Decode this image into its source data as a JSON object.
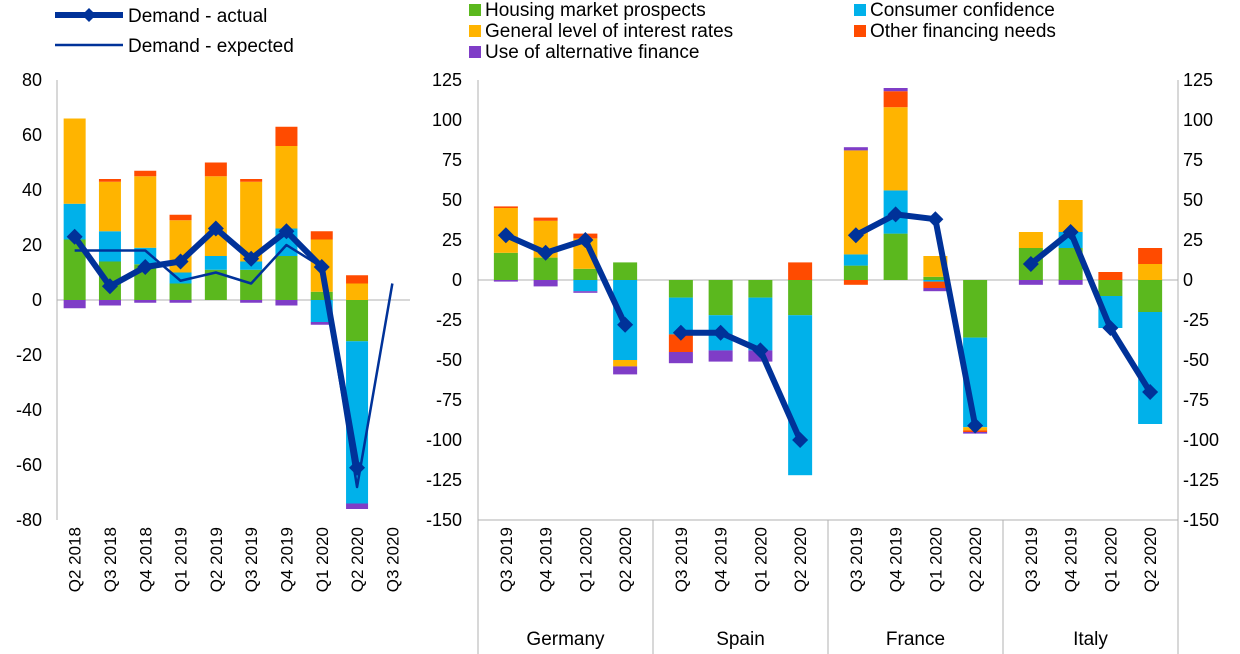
{
  "colors": {
    "housing_market_prospects": "#5BB81E",
    "consumer_confidence": "#00B1EA",
    "general_level_of_interest_rates": "#FFB400",
    "other_financing_needs": "#FF4B00",
    "use_of_alternative_finance": "#7F3DC7",
    "demand_line": "#003299",
    "axis": "#B0B0B0"
  },
  "legend": {
    "demand_actual": "Demand - actual",
    "demand_expected": "Demand - expected",
    "housing": "Housing market prospects",
    "interest": "General level of interest rates",
    "alt_finance": "Use of alternative finance",
    "consumer": "Consumer confidence",
    "other": "Other financing needs"
  },
  "chart_data": [
    {
      "type": "bar",
      "stacked": true,
      "title": "",
      "ylim": [
        -80,
        80
      ],
      "yticks": [
        -80,
        -60,
        -40,
        -20,
        0,
        20,
        40,
        60,
        80
      ],
      "categories": [
        "Q2 2018",
        "Q3 2018",
        "Q4 2018",
        "Q1 2019",
        "Q2 2019",
        "Q3 2019",
        "Q4 2019",
        "Q1 2020",
        "Q2 2020",
        "Q3 2020"
      ],
      "series": [
        {
          "name": "Housing market prospects",
          "color_key": "housing_market_prospects",
          "values": [
            22,
            14,
            13,
            6,
            11,
            11,
            16,
            3,
            -15,
            null
          ]
        },
        {
          "name": "Consumer confidence",
          "color_key": "consumer_confidence",
          "values": [
            13,
            11,
            6,
            4,
            5,
            3,
            10,
            -8,
            -59,
            null
          ]
        },
        {
          "name": "General level of interest rates",
          "color_key": "general_level_of_interest_rates",
          "values": [
            31,
            18,
            26,
            19,
            29,
            29,
            30,
            19,
            6,
            null
          ]
        },
        {
          "name": "Other financing needs",
          "color_key": "other_financing_needs",
          "values": [
            0,
            1,
            2,
            2,
            5,
            1,
            7,
            3,
            3,
            null
          ]
        },
        {
          "name": "Use of alternative finance",
          "color_key": "use_of_alternative_finance",
          "values": [
            -3,
            -2,
            -1,
            -1,
            0,
            -1,
            -2,
            -1,
            -2,
            null
          ]
        }
      ],
      "lines": [
        {
          "name": "Demand - actual",
          "values": [
            23,
            5,
            12,
            14,
            26,
            15,
            25,
            12,
            -61,
            null
          ],
          "markers": true
        },
        {
          "name": "Demand - expected",
          "values": [
            18,
            18,
            18,
            7,
            10,
            6,
            20,
            12,
            -68,
            6
          ],
          "markers": false
        }
      ]
    },
    {
      "type": "bar",
      "stacked": true,
      "title": "",
      "ylim": [
        -150,
        125
      ],
      "yticks": [
        -150,
        -125,
        -100,
        -75,
        -50,
        -25,
        0,
        25,
        50,
        75,
        100,
        125
      ],
      "groups": [
        {
          "name": "Germany",
          "categories": [
            "Q3 2019",
            "Q4 2019",
            "Q1 2020",
            "Q2 2020"
          ],
          "housing": [
            17,
            14,
            7,
            11
          ],
          "consumer": [
            0,
            0,
            -7,
            -50
          ],
          "interest": [
            28,
            23,
            19,
            -4
          ],
          "other": [
            1,
            2,
            3,
            0
          ],
          "alt_finance": [
            -1,
            -4,
            -1,
            -5
          ],
          "demand_actual": [
            28,
            17,
            25,
            -28
          ]
        },
        {
          "name": "Spain",
          "categories": [
            "Q3 2019",
            "Q4 2019",
            "Q1 2020",
            "Q2 2020"
          ],
          "housing": [
            -11,
            -22,
            -11,
            -22
          ],
          "consumer": [
            -23,
            -22,
            -33,
            -100
          ],
          "interest": [
            0,
            0,
            0,
            0
          ],
          "other": [
            -11,
            0,
            0,
            11
          ],
          "alt_finance": [
            -7,
            -7,
            -7,
            0
          ],
          "demand_actual": [
            -33,
            -33,
            -44,
            -100
          ]
        },
        {
          "name": "France",
          "categories": [
            "Q3 2019",
            "Q4 2019",
            "Q1 2020",
            "Q2 2020"
          ],
          "housing": [
            9,
            29,
            2,
            -36
          ],
          "consumer": [
            7,
            27,
            -1,
            -56
          ],
          "interest": [
            65,
            52,
            13,
            -2
          ],
          "other": [
            -3,
            10,
            -4,
            -1
          ],
          "alt_finance": [
            2,
            2,
            -2,
            -1
          ],
          "demand_actual": [
            28,
            41,
            38,
            -91
          ]
        },
        {
          "name": "Italy",
          "categories": [
            "Q3 2019",
            "Q4 2019",
            "Q1 2020",
            "Q2 2020"
          ],
          "housing": [
            20,
            20,
            -10,
            -20
          ],
          "consumer": [
            0,
            10,
            -20,
            -70
          ],
          "interest": [
            10,
            20,
            0,
            10
          ],
          "other": [
            0,
            0,
            5,
            10
          ],
          "alt_finance": [
            -3,
            -3,
            0,
            0
          ],
          "demand_actual": [
            10,
            30,
            -30,
            -70
          ]
        }
      ]
    }
  ]
}
